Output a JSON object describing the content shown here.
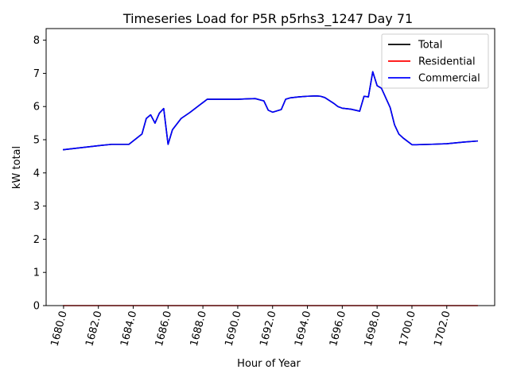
{
  "chart_data": {
    "type": "line",
    "title": "Timeseries Load for P5R p5rhs3_1247  Day 71",
    "xlabel": "Hour of Year",
    "ylabel": "kW total",
    "xlim": [
      1679.0,
      1704.75
    ],
    "ylim": [
      0,
      8.35
    ],
    "xticks": [
      1680.0,
      1682.0,
      1684.0,
      1686.0,
      1688.0,
      1690.0,
      1692.0,
      1694.0,
      1696.0,
      1698.0,
      1700.0,
      1702.0
    ],
    "xtick_labels": [
      "1680.0",
      "1682.0",
      "1684.0",
      "1686.0",
      "1688.0",
      "1690.0",
      "1692.0",
      "1694.0",
      "1696.0",
      "1698.0",
      "1700.0",
      "1702.0"
    ],
    "yticks": [
      0,
      1,
      2,
      3,
      4,
      5,
      6,
      7,
      8
    ],
    "ytick_labels": [
      "0",
      "1",
      "2",
      "3",
      "4",
      "5",
      "6",
      "7",
      "8"
    ],
    "legend_position": "top-right",
    "grid": false,
    "series": [
      {
        "name": "Total",
        "color": "#000000",
        "x": [
          1680.0,
          1681.0,
          1682.0,
          1682.75,
          1683.75,
          1684.5,
          1684.75,
          1685.0,
          1685.25,
          1685.5,
          1685.75,
          1686.0,
          1686.25,
          1686.75,
          1687.25,
          1688.25,
          1689.0,
          1690.0,
          1690.5,
          1691.0,
          1691.5,
          1691.75,
          1692.0,
          1692.5,
          1692.75,
          1693.0,
          1693.5,
          1694.0,
          1694.5,
          1694.75,
          1695.0,
          1695.5,
          1695.75,
          1696.0,
          1696.5,
          1697.0,
          1697.25,
          1697.5,
          1697.75,
          1698.0,
          1698.25,
          1698.75,
          1699.0,
          1699.25,
          1699.5,
          1700.0,
          1700.25,
          1701.0,
          1702.0,
          1703.0,
          1703.75
        ],
        "y": [
          4.7,
          4.76,
          4.82,
          4.86,
          4.86,
          5.17,
          5.64,
          5.75,
          5.5,
          5.8,
          5.94,
          4.86,
          5.3,
          5.64,
          5.82,
          6.22,
          6.22,
          6.22,
          6.23,
          6.24,
          6.17,
          5.89,
          5.83,
          5.91,
          6.22,
          6.26,
          6.29,
          6.31,
          6.32,
          6.31,
          6.27,
          6.1,
          6.0,
          5.95,
          5.92,
          5.86,
          6.31,
          6.29,
          7.05,
          6.63,
          6.55,
          5.97,
          5.45,
          5.17,
          5.05,
          4.85,
          4.85,
          4.86,
          4.88,
          4.93,
          4.96
        ]
      },
      {
        "name": "Residential",
        "color": "#ff0000",
        "x": [
          1680.0,
          1703.75
        ],
        "y": [
          0.0,
          0.0
        ]
      },
      {
        "name": "Commercial",
        "color": "#0000ff",
        "x": [
          1680.0,
          1681.0,
          1682.0,
          1682.75,
          1683.75,
          1684.5,
          1684.75,
          1685.0,
          1685.25,
          1685.5,
          1685.75,
          1686.0,
          1686.25,
          1686.75,
          1687.25,
          1688.25,
          1689.0,
          1690.0,
          1690.5,
          1691.0,
          1691.5,
          1691.75,
          1692.0,
          1692.5,
          1692.75,
          1693.0,
          1693.5,
          1694.0,
          1694.5,
          1694.75,
          1695.0,
          1695.5,
          1695.75,
          1696.0,
          1696.5,
          1697.0,
          1697.25,
          1697.5,
          1697.75,
          1698.0,
          1698.25,
          1698.75,
          1699.0,
          1699.25,
          1699.5,
          1700.0,
          1700.25,
          1701.0,
          1702.0,
          1703.0,
          1703.75
        ],
        "y": [
          4.7,
          4.76,
          4.82,
          4.86,
          4.86,
          5.17,
          5.64,
          5.75,
          5.5,
          5.8,
          5.94,
          4.86,
          5.3,
          5.64,
          5.82,
          6.22,
          6.22,
          6.22,
          6.23,
          6.24,
          6.17,
          5.89,
          5.83,
          5.91,
          6.22,
          6.26,
          6.29,
          6.31,
          6.32,
          6.31,
          6.27,
          6.1,
          6.0,
          5.95,
          5.92,
          5.86,
          6.31,
          6.29,
          7.05,
          6.63,
          6.55,
          5.97,
          5.45,
          5.17,
          5.05,
          4.85,
          4.85,
          4.86,
          4.88,
          4.93,
          4.96
        ]
      }
    ]
  }
}
